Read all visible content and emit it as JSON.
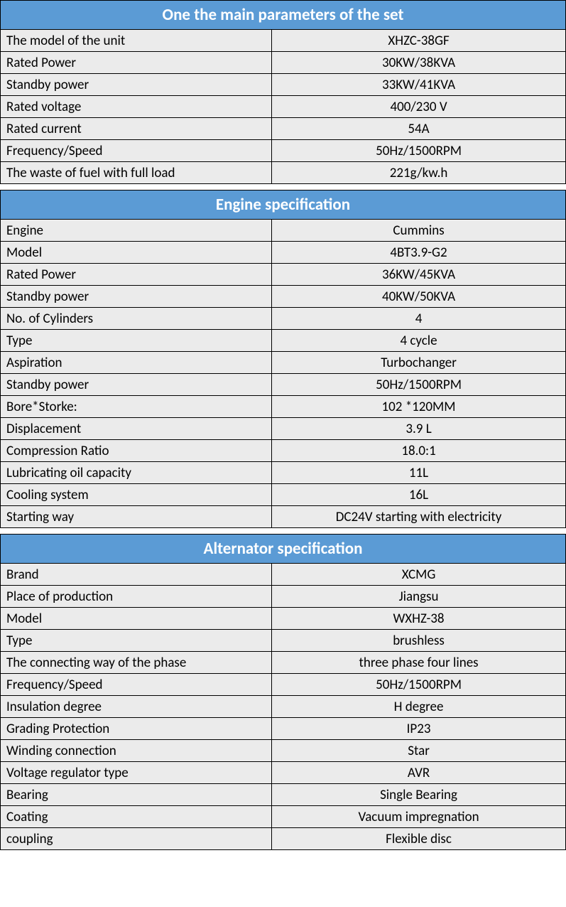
{
  "colors": {
    "header_bg": "#5b9bd5",
    "header_text": "#ffffff",
    "cell_bg": "#ebebeb",
    "cell_text": "#000000",
    "border": "#000000"
  },
  "typography": {
    "header_fontsize": 23,
    "cell_fontsize": 19,
    "font_family": "Calibri"
  },
  "tables": [
    {
      "title": "One the main parameters of the set",
      "rows": [
        {
          "label": "The model of the unit",
          "value": "XHZC-38GF"
        },
        {
          "label": "Rated Power",
          "value": "30KW/38KVA"
        },
        {
          "label": "Standby power",
          "value": "33KW/41KVA"
        },
        {
          "label": "Rated voltage",
          "value": "400/230 V"
        },
        {
          "label": "Rated current",
          "value": "54A"
        },
        {
          "label": "Frequency/Speed",
          "value": "50Hz/1500RPM"
        },
        {
          "label": "The waste of fuel with full load",
          "value": "221g/kw.h"
        }
      ]
    },
    {
      "title": "Engine specification",
      "rows": [
        {
          "label": "Engine",
          "value": "Cummins"
        },
        {
          "label": "Model",
          "value": "4BT3.9-G2"
        },
        {
          "label": "Rated Power",
          "value": "36KW/45KVA"
        },
        {
          "label": "Standby power",
          "value": "40KW/50KVA"
        },
        {
          "label": "No. of Cylinders",
          "value": "4"
        },
        {
          "label": "Type",
          "value": "4 cycle"
        },
        {
          "label": "Aspiration",
          "value": "Turbochanger"
        },
        {
          "label": "Standby power",
          "value": "50Hz/1500RPM"
        },
        {
          "label": "Bore*Storke:",
          "value": "102 *120MM"
        },
        {
          "label": "Displacement",
          "value": "3.9 L"
        },
        {
          "label": "Compression Ratio",
          "value": "18.0:1"
        },
        {
          "label": "Lubricating oil capacity",
          "value": "11L"
        },
        {
          "label": "Cooling system",
          "value": "16L"
        },
        {
          "label": "Starting way",
          "value": "DC24V starting with electricity"
        }
      ]
    },
    {
      "title": "Alternator specification",
      "rows": [
        {
          "label": "Brand",
          "value": "XCMG"
        },
        {
          "label": "Place of production",
          "value": "Jiangsu"
        },
        {
          "label": "Model",
          "value": "WXHZ-38"
        },
        {
          "label": "Type",
          "value": "brushless"
        },
        {
          "label": "The connecting way of the phase",
          "value": "three phase four lines"
        },
        {
          "label": "Frequency/Speed",
          "value": "50Hz/1500RPM"
        },
        {
          "label": "Insulation degree",
          "value": "H degree"
        },
        {
          "label": "Grading Protection",
          "value": "IP23"
        },
        {
          "label": "Winding connection",
          "value": "Star"
        },
        {
          "label": "Voltage regulator type",
          "value": "AVR"
        },
        {
          "label": "Bearing",
          "value": "Single Bearing"
        },
        {
          "label": "Coating",
          "value": "Vacuum impregnation"
        },
        {
          "label": "coupling",
          "value": "Flexible disc"
        }
      ]
    }
  ]
}
